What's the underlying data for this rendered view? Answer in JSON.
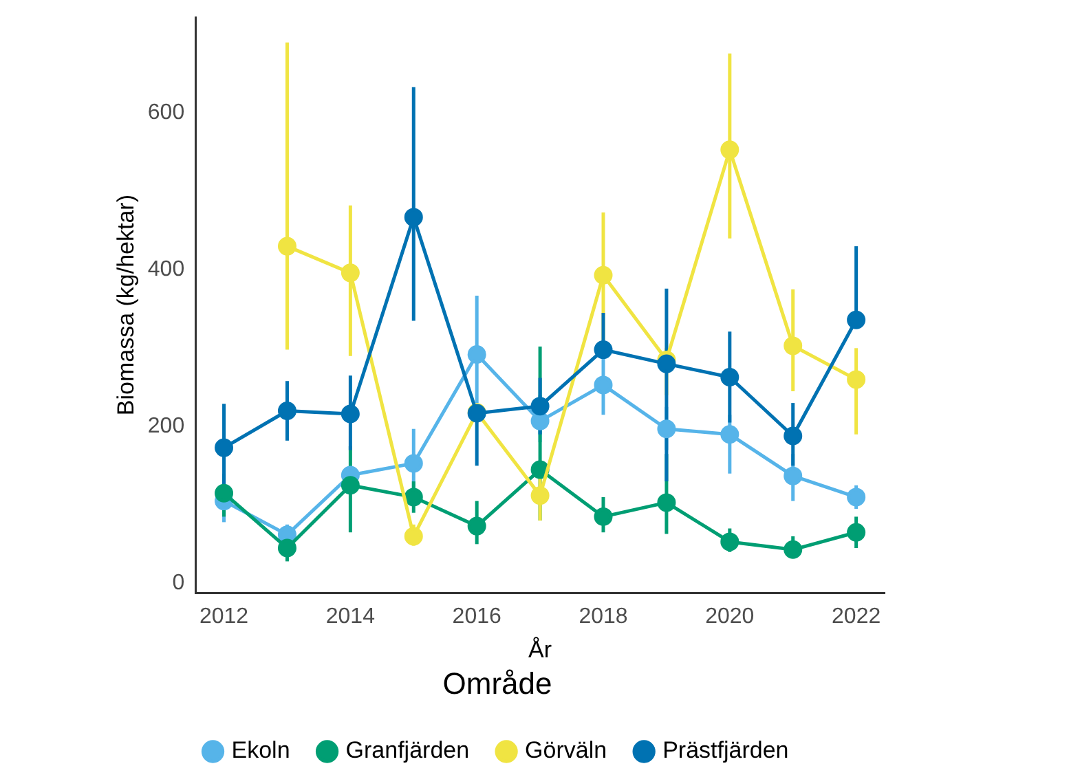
{
  "chart_data": {
    "type": "line",
    "xlabel": "År",
    "ylabel": "Biomassa (kg/hektar)",
    "legend_title": "Område",
    "legend": "bottom",
    "grid": false,
    "marker": "circle",
    "line_style": "solid",
    "x": [
      2012,
      2013,
      2014,
      2015,
      2016,
      2017,
      2018,
      2019,
      2020,
      2021,
      2022
    ],
    "xlim": [
      2011.55,
      2022.45
    ],
    "xticks": [
      2012,
      2014,
      2016,
      2018,
      2020,
      2022
    ],
    "ylim": [
      -12,
      722
    ],
    "yticks": [
      0,
      200,
      400,
      600
    ],
    "series": [
      {
        "name": "Ekoln",
        "color": "#56b4e9",
        "values": [
          105,
          62,
          138,
          153,
          292,
          207,
          253,
          197,
          190,
          137,
          110
        ],
        "errors": [
          [
            78,
            120
          ],
          [
            62,
            75
          ],
          null,
          [
            100,
            197
          ],
          [
            230,
            367
          ],
          [
            180,
            240
          ],
          [
            215,
            290
          ],
          [
            170,
            225
          ],
          [
            140,
            215
          ],
          [
            105,
            165
          ],
          [
            95,
            125
          ]
        ]
      },
      {
        "name": "Granfjärden",
        "color": "#009e73",
        "values": [
          115,
          45,
          125,
          110,
          73,
          145,
          85,
          103,
          53,
          43,
          65
        ],
        "errors": [
          [
            85,
            140
          ],
          [
            28,
            45
          ],
          [
            65,
            175
          ],
          [
            90,
            130
          ],
          [
            50,
            105
          ],
          [
            80,
            302
          ],
          [
            65,
            110
          ],
          [
            63,
            165
          ],
          [
            40,
            70
          ],
          [
            32,
            60
          ],
          [
            45,
            85
          ]
        ]
      },
      {
        "name": "Görväln",
        "color": "#f0e442",
        "values": [
          null,
          430,
          396,
          60,
          218,
          112,
          393,
          285,
          553,
          303,
          260
        ],
        "errors": [
          null,
          [
            298,
            690
          ],
          [
            290,
            482
          ],
          [
            48,
            75
          ],
          null,
          [
            80,
            140
          ],
          [
            310,
            473
          ],
          [
            240,
            300
          ],
          [
            440,
            676
          ],
          [
            245,
            375
          ],
          [
            190,
            300
          ]
        ]
      },
      {
        "name": "Prästfjärden",
        "color": "#0072b2",
        "values": [
          173,
          220,
          216,
          467,
          217,
          226,
          298,
          280,
          263,
          188,
          336
        ],
        "errors": [
          [
            120,
            229
          ],
          [
            182,
            258
          ],
          [
            170,
            265
          ],
          [
            335,
            633
          ],
          [
            150,
            217
          ],
          [
            190,
            262
          ],
          [
            298,
            345
          ],
          [
            130,
            376
          ],
          [
            205,
            321
          ],
          [
            150,
            230
          ],
          [
            336,
            430
          ]
        ]
      }
    ]
  }
}
